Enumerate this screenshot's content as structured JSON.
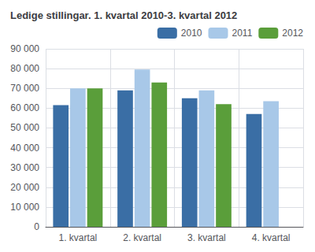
{
  "chart_data": {
    "type": "bar",
    "title": "Ledige stillingar. 1. kvartal 2010-3. kvartal 2012",
    "categories": [
      "1. kvartal",
      "2. kvartal",
      "3. kvartal",
      "4. kvartal"
    ],
    "series": [
      {
        "name": "2010",
        "color": "#3A6EA5",
        "values": [
          61500,
          69000,
          65000,
          57000
        ]
      },
      {
        "name": "2011",
        "color": "#A8C8E8",
        "values": [
          70000,
          79500,
          69000,
          63500
        ]
      },
      {
        "name": "2012",
        "color": "#5A9E3A",
        "values": [
          70000,
          73000,
          62000,
          null
        ]
      }
    ],
    "ylim": [
      0,
      90000
    ],
    "yticks": [
      0,
      {
        "value": 10000,
        "label": "10 000"
      },
      {
        "value": 20000,
        "label": "20 000"
      },
      {
        "value": 30000,
        "label": "30 000"
      },
      {
        "value": 40000,
        "label": "40 000"
      },
      {
        "value": 50000,
        "label": "50 000"
      },
      {
        "value": 60000,
        "label": "60 000"
      },
      {
        "value": 70000,
        "label": "70 000"
      },
      {
        "value": 80000,
        "label": "80 000"
      },
      {
        "value": 90000,
        "label": "90 000"
      }
    ],
    "grid": true,
    "legend": "upper right"
  }
}
